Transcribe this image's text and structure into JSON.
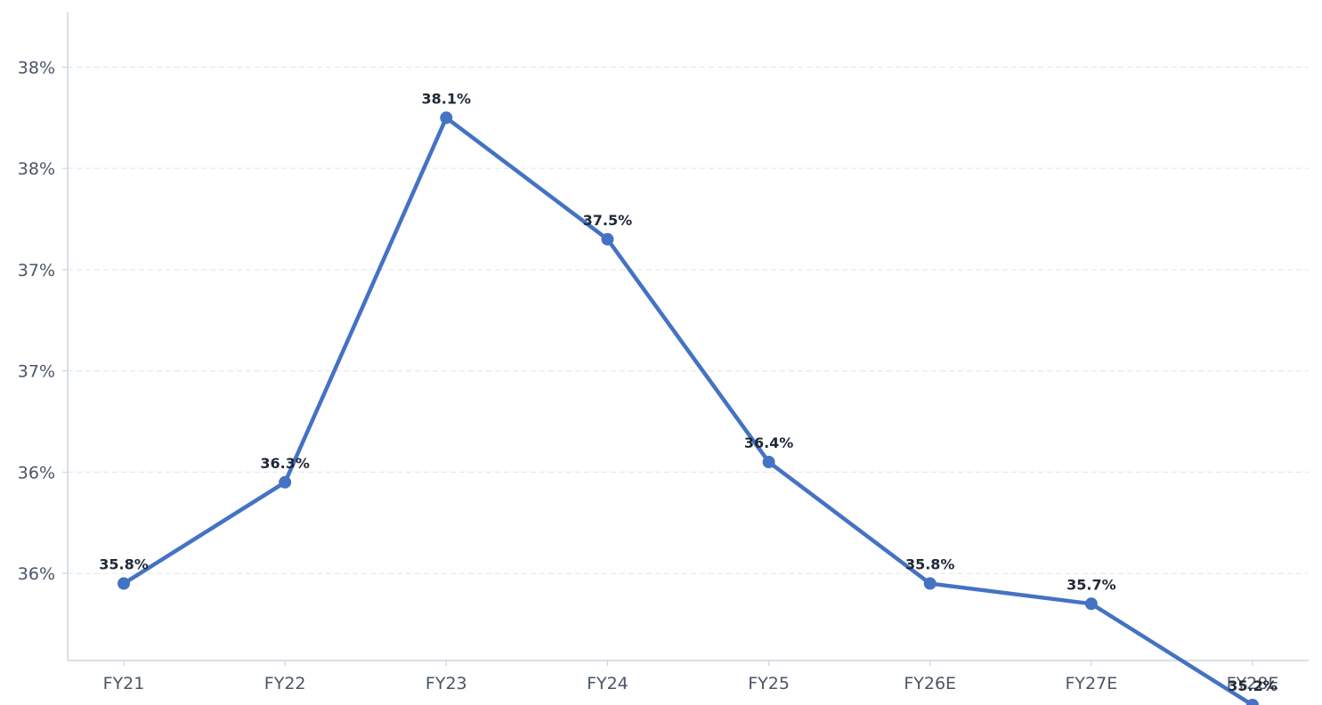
{
  "chart_data": {
    "type": "line",
    "categories": [
      "FY21",
      "FY22",
      "FY23",
      "FY24",
      "FY25",
      "FY26E",
      "FY27E",
      "FY28E"
    ],
    "series": [
      {
        "values": [
          35.8,
          36.3,
          38.1,
          37.5,
          36.4,
          35.8,
          35.7,
          35.2
        ],
        "labels": [
          "35.8%",
          "36.3%",
          "38.1%",
          "37.5%",
          "36.4%",
          "35.8%",
          "35.7%",
          "35.2%"
        ]
      }
    ],
    "y_ticks": [
      35.85,
      36.35,
      36.85,
      37.35,
      37.85,
      38.35
    ],
    "y_tick_labels": [
      "36%",
      "36%",
      "37%",
      "37%",
      "38%",
      "38%"
    ],
    "ylim": [
      35.42,
      38.62
    ],
    "grid": true,
    "colors": {
      "line": "#4472c4",
      "grid": "#e5e7eb",
      "axis": "#cbd5e1"
    }
  }
}
